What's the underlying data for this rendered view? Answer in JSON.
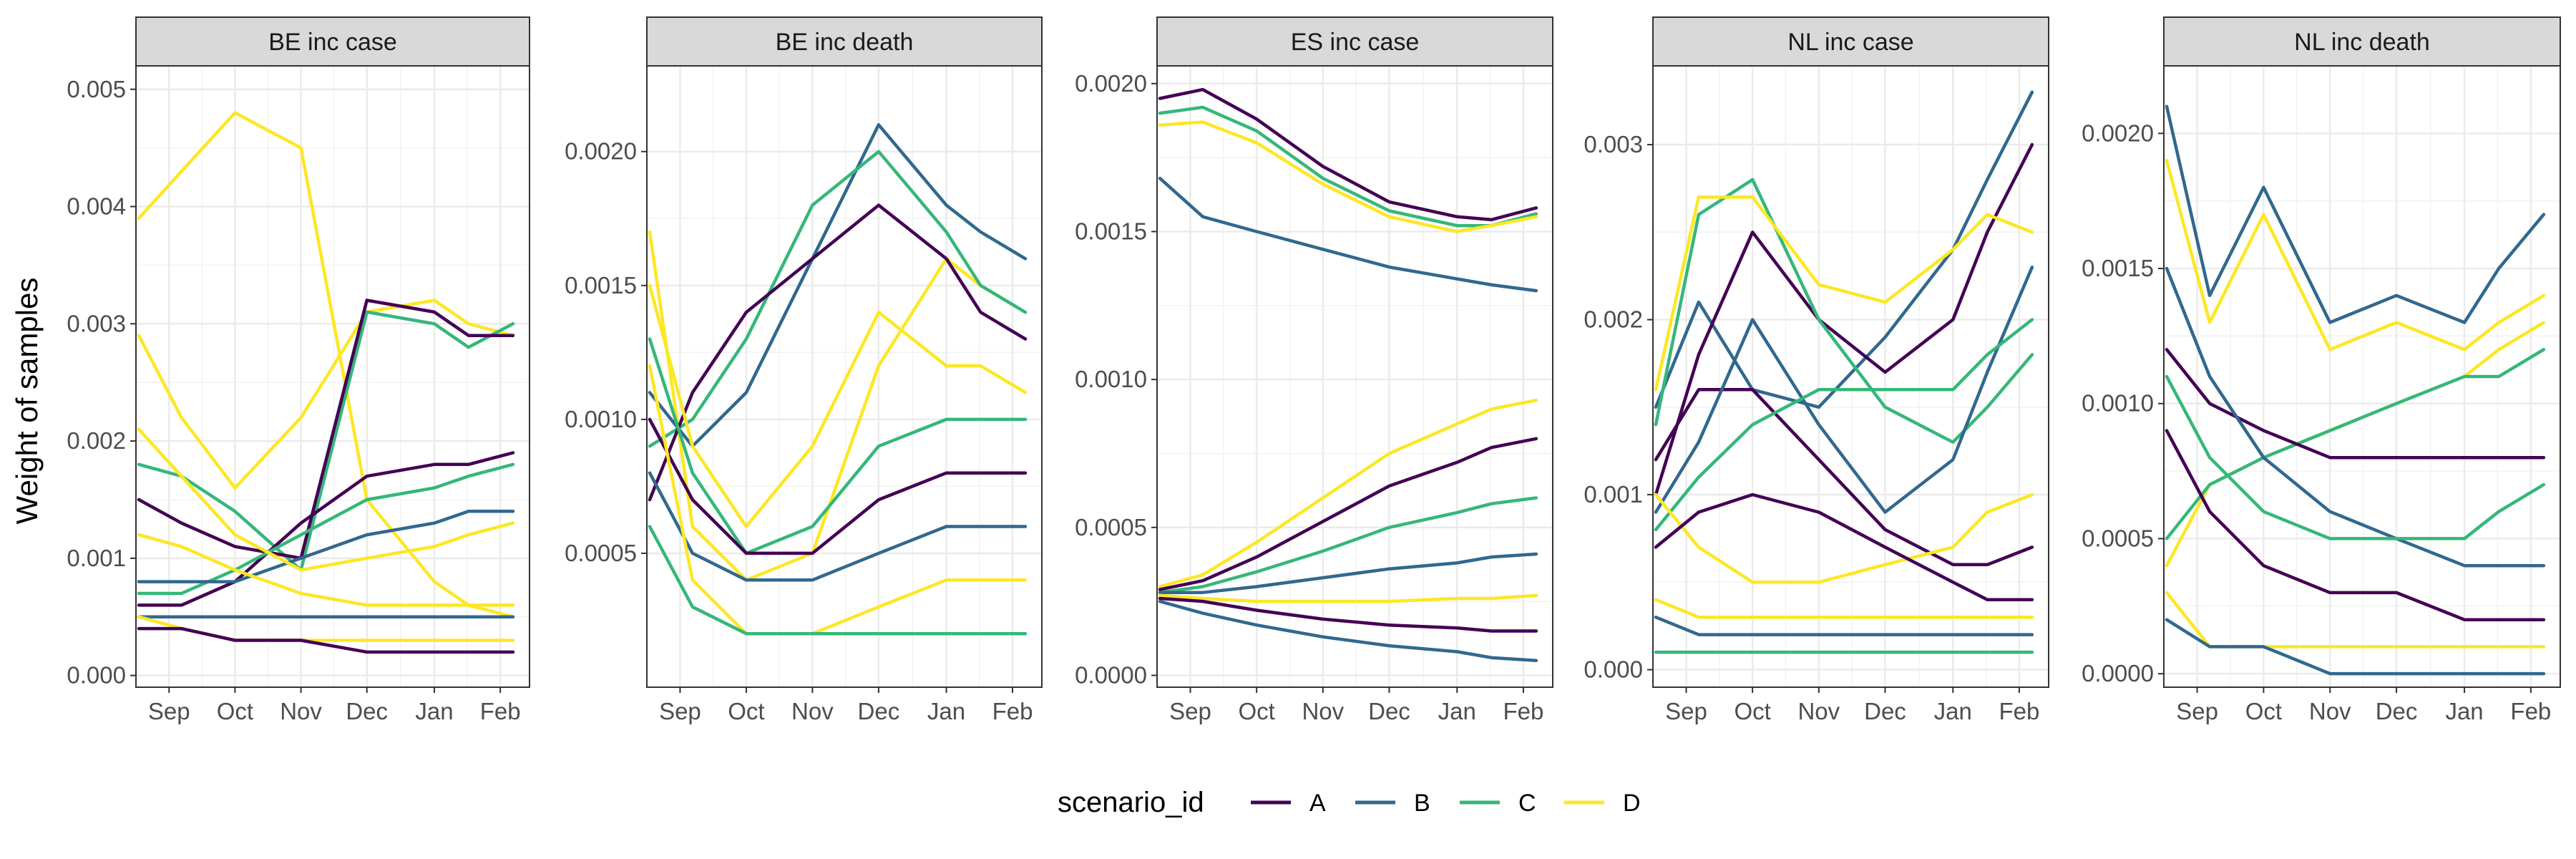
{
  "chart_data": {
    "type": "line",
    "ylabel": "Weight of samples",
    "x_ticks": [
      "Sep",
      "Oct",
      "Nov",
      "Dec",
      "Jan",
      "Feb"
    ],
    "grid": true,
    "legend": {
      "title": "scenario_id",
      "position": "bottom",
      "entries": [
        {
          "label": "A",
          "color": "#440154"
        },
        {
          "label": "B",
          "color": "#31688E"
        },
        {
          "label": "C",
          "color": "#35B779"
        },
        {
          "label": "D",
          "color": "#FDE725"
        }
      ]
    },
    "facets": [
      {
        "title": "BE inc case",
        "ylim": [
          -0.0001,
          0.0052
        ],
        "y_ticks": [
          0,
          0.001,
          0.002,
          0.003,
          0.004,
          0.005
        ],
        "y_tick_labels": [
          "0.000",
          "0.001",
          "0.002",
          "0.003",
          "0.004",
          "0.005"
        ],
        "series": [
          {
            "color": "#FDE725",
            "values": [
              0.0039,
              0.0043,
              0.0048,
              0.0045,
              0.0015,
              0.0008,
              0.0006,
              0.0005
            ]
          },
          {
            "color": "#FDE725",
            "values": [
              0.0029,
              0.0022,
              0.0016,
              0.0022,
              0.0031,
              0.0032,
              0.003,
              0.0029
            ]
          },
          {
            "color": "#35B779",
            "values": [
              0.0018,
              0.0017,
              0.0014,
              0.0009,
              0.0031,
              0.003,
              0.0028,
              0.003
            ]
          },
          {
            "color": "#440154",
            "values": [
              0.0015,
              0.0013,
              0.0011,
              0.001,
              0.0032,
              0.0031,
              0.0029,
              0.0029
            ]
          },
          {
            "color": "#440154",
            "values": [
              0.0006,
              0.0006,
              0.0008,
              0.0013,
              0.0017,
              0.0018,
              0.0018,
              0.0019
            ]
          },
          {
            "color": "#35B779",
            "values": [
              0.0007,
              0.0007,
              0.0009,
              0.0012,
              0.0015,
              0.0016,
              0.0017,
              0.0018
            ]
          },
          {
            "color": "#31688E",
            "values": [
              0.0008,
              0.0008,
              0.0008,
              0.001,
              0.0012,
              0.0013,
              0.0014,
              0.0014
            ]
          },
          {
            "color": "#FDE725",
            "values": [
              0.0021,
              0.0017,
              0.0012,
              0.0009,
              0.001,
              0.0011,
              0.0012,
              0.0013
            ]
          },
          {
            "color": "#FDE725",
            "values": [
              0.0012,
              0.0011,
              0.0009,
              0.0007,
              0.0006,
              0.0006,
              0.0006,
              0.0006
            ]
          },
          {
            "color": "#31688E",
            "values": [
              0.0005,
              0.0005,
              0.0005,
              0.0005,
              0.0005,
              0.0005,
              0.0005,
              0.0005
            ]
          },
          {
            "color": "#FDE725",
            "values": [
              0.0005,
              0.0004,
              0.0003,
              0.0003,
              0.0003,
              0.0003,
              0.0003,
              0.0003
            ]
          },
          {
            "color": "#440154",
            "values": [
              0.0004,
              0.0004,
              0.0003,
              0.0003,
              0.0002,
              0.0002,
              0.0002,
              0.0002
            ]
          }
        ]
      },
      {
        "title": "BE inc death",
        "ylim": [
          0,
          0.00232
        ],
        "y_ticks": [
          0.0005,
          0.001,
          0.0015,
          0.002
        ],
        "y_tick_labels": [
          "0.0005",
          "0.0010",
          "0.0015",
          "0.0020"
        ],
        "series": [
          {
            "color": "#FDE725",
            "values": [
              0.0017,
              0.0006,
              0.0004,
              0.0005,
              0.0012,
              0.0016,
              0.0015,
              0.0014
            ]
          },
          {
            "color": "#31688E",
            "values": [
              0.0011,
              0.0009,
              0.0011,
              0.0016,
              0.0021,
              0.0018,
              0.0017,
              0.0016
            ]
          },
          {
            "color": "#35B779",
            "values": [
              0.0009,
              0.001,
              0.0013,
              0.0018,
              0.002,
              0.0017,
              0.0015,
              0.0014
            ]
          },
          {
            "color": "#440154",
            "values": [
              0.0007,
              0.0011,
              0.0014,
              0.0016,
              0.0018,
              0.0016,
              0.0014,
              0.0013
            ]
          },
          {
            "color": "#FDE725",
            "values": [
              0.0015,
              0.0009,
              0.0006,
              0.0009,
              0.0014,
              0.0012,
              0.0012,
              0.0011
            ]
          },
          {
            "color": "#35B779",
            "values": [
              0.0013,
              0.0008,
              0.0005,
              0.0006,
              0.0009,
              0.001,
              0.001,
              0.001
            ]
          },
          {
            "color": "#440154",
            "values": [
              0.001,
              0.0007,
              0.0005,
              0.0005,
              0.0007,
              0.0008,
              0.0008,
              0.0008
            ]
          },
          {
            "color": "#31688E",
            "values": [
              0.0008,
              0.0005,
              0.0004,
              0.0004,
              0.0005,
              0.0006,
              0.0006,
              0.0006
            ]
          },
          {
            "color": "#FDE725",
            "values": [
              0.0012,
              0.0004,
              0.0002,
              0.0002,
              0.0003,
              0.0004,
              0.0004,
              0.0004
            ]
          },
          {
            "color": "#35B779",
            "values": [
              0.0006,
              0.0003,
              0.0002,
              0.0002,
              0.0002,
              0.0002,
              0.0002,
              0.0002
            ]
          }
        ]
      },
      {
        "title": "ES inc case",
        "ylim": [
          -4e-05,
          0.00206
        ],
        "y_ticks": [
          0,
          0.0005,
          0.001,
          0.0015,
          0.002
        ],
        "y_tick_labels": [
          "0.0000",
          "0.0005",
          "0.0010",
          "0.0015",
          "0.0020"
        ],
        "series": [
          {
            "color": "#440154",
            "values": [
              0.00195,
              0.00198,
              0.00188,
              0.00172,
              0.0016,
              0.00155,
              0.00154,
              0.00158
            ]
          },
          {
            "color": "#35B779",
            "values": [
              0.0019,
              0.00192,
              0.00184,
              0.00168,
              0.00157,
              0.00152,
              0.00152,
              0.00156
            ]
          },
          {
            "color": "#FDE725",
            "values": [
              0.00186,
              0.00187,
              0.0018,
              0.00166,
              0.00155,
              0.0015,
              0.00152,
              0.00155
            ]
          },
          {
            "color": "#31688E",
            "values": [
              0.00168,
              0.00155,
              0.0015,
              0.00144,
              0.00138,
              0.00134,
              0.00132,
              0.0013
            ]
          },
          {
            "color": "#FDE725",
            "values": [
              0.0003,
              0.00034,
              0.00045,
              0.0006,
              0.00075,
              0.00085,
              0.0009,
              0.00093
            ]
          },
          {
            "color": "#440154",
            "values": [
              0.00029,
              0.00032,
              0.0004,
              0.00052,
              0.00064,
              0.00072,
              0.00077,
              0.0008
            ]
          },
          {
            "color": "#35B779",
            "values": [
              0.00028,
              0.0003,
              0.00035,
              0.00042,
              0.0005,
              0.00055,
              0.00058,
              0.0006
            ]
          },
          {
            "color": "#31688E",
            "values": [
              0.00028,
              0.00028,
              0.0003,
              0.00033,
              0.00036,
              0.00038,
              0.0004,
              0.00041
            ]
          },
          {
            "color": "#FDE725",
            "values": [
              0.00027,
              0.00026,
              0.00025,
              0.00025,
              0.00025,
              0.00026,
              0.00026,
              0.00027
            ]
          },
          {
            "color": "#440154",
            "values": [
              0.00026,
              0.00025,
              0.00022,
              0.00019,
              0.00017,
              0.00016,
              0.00015,
              0.00015
            ]
          },
          {
            "color": "#31688E",
            "values": [
              0.00025,
              0.00021,
              0.00017,
              0.00013,
              0.0001,
              8e-05,
              6e-05,
              5e-05
            ]
          }
        ]
      },
      {
        "title": "NL inc case",
        "ylim": [
          -0.0001,
          0.00345
        ],
        "y_ticks": [
          0,
          0.001,
          0.002,
          0.003
        ],
        "y_tick_labels": [
          "0.000",
          "0.001",
          "0.002",
          "0.003"
        ],
        "series": [
          {
            "color": "#31688E",
            "values": [
              0.0015,
              0.0021,
              0.0016,
              0.0015,
              0.0019,
              0.0024,
              0.0028,
              0.0033
            ]
          },
          {
            "color": "#440154",
            "values": [
              0.001,
              0.0018,
              0.0025,
              0.002,
              0.0017,
              0.002,
              0.0025,
              0.003
            ]
          },
          {
            "color": "#35B779",
            "values": [
              0.0014,
              0.0026,
              0.0028,
              0.002,
              0.0015,
              0.0013,
              0.0015,
              0.0018
            ]
          },
          {
            "color": "#FDE725",
            "values": [
              0.0016,
              0.0027,
              0.0027,
              0.0022,
              0.0021,
              0.0024,
              0.0026,
              0.0025
            ]
          },
          {
            "color": "#440154",
            "values": [
              0.0012,
              0.0016,
              0.0016,
              0.0012,
              0.0008,
              0.0006,
              0.0006,
              0.0007
            ]
          },
          {
            "color": "#31688E",
            "values": [
              0.0009,
              0.0013,
              0.002,
              0.0014,
              0.0009,
              0.0012,
              0.0017,
              0.0023
            ]
          },
          {
            "color": "#35B779",
            "values": [
              0.0008,
              0.0011,
              0.0014,
              0.0016,
              0.0016,
              0.0016,
              0.0018,
              0.002
            ]
          },
          {
            "color": "#FDE725",
            "values": [
              0.001,
              0.0007,
              0.0005,
              0.0005,
              0.0006,
              0.0007,
              0.0009,
              0.001
            ]
          },
          {
            "color": "#440154",
            "values": [
              0.0007,
              0.0009,
              0.001,
              0.0009,
              0.0007,
              0.0005,
              0.0004,
              0.0004
            ]
          },
          {
            "color": "#FDE725",
            "values": [
              0.0004,
              0.0003,
              0.0003,
              0.0003,
              0.0003,
              0.0003,
              0.0003,
              0.0003
            ]
          },
          {
            "color": "#31688E",
            "values": [
              0.0003,
              0.0002,
              0.0002,
              0.0002,
              0.0002,
              0.0002,
              0.0002,
              0.0002
            ]
          },
          {
            "color": "#35B779",
            "values": [
              0.0001,
              0.0001,
              0.0001,
              0.0001,
              0.0001,
              0.0001,
              0.0001,
              0.0001
            ]
          }
        ]
      },
      {
        "title": "NL inc death",
        "ylim": [
          -5e-05,
          0.00225
        ],
        "y_ticks": [
          0,
          0.0005,
          0.001,
          0.0015,
          0.002
        ],
        "y_tick_labels": [
          "0.0000",
          "0.0005",
          "0.0010",
          "0.0015",
          "0.0020"
        ],
        "series": [
          {
            "color": "#31688E",
            "values": [
              0.0021,
              0.0014,
              0.0018,
              0.0013,
              0.0014,
              0.0013,
              0.0015,
              0.0017
            ]
          },
          {
            "color": "#FDE725",
            "values": [
              0.0019,
              0.0013,
              0.0017,
              0.0012,
              0.0013,
              0.0012,
              0.0013,
              0.0014
            ]
          },
          {
            "color": "#FDE725",
            "values": [
              0.0004,
              0.0007,
              0.0008,
              0.0009,
              0.001,
              0.0011,
              0.0012,
              0.0013
            ]
          },
          {
            "color": "#35B779",
            "values": [
              0.0005,
              0.0007,
              0.0008,
              0.0009,
              0.001,
              0.0011,
              0.0011,
              0.0012
            ]
          },
          {
            "color": "#440154",
            "values": [
              0.0012,
              0.001,
              0.0009,
              0.0008,
              0.0008,
              0.0008,
              0.0008,
              0.0008
            ]
          },
          {
            "color": "#31688E",
            "values": [
              0.0015,
              0.0011,
              0.0008,
              0.0006,
              0.0005,
              0.0004,
              0.0004,
              0.0004
            ]
          },
          {
            "color": "#35B779",
            "values": [
              0.0011,
              0.0008,
              0.0006,
              0.0005,
              0.0005,
              0.0005,
              0.0006,
              0.0007
            ]
          },
          {
            "color": "#440154",
            "values": [
              0.0009,
              0.0006,
              0.0004,
              0.0003,
              0.0003,
              0.0002,
              0.0002,
              0.0002
            ]
          },
          {
            "color": "#FDE725",
            "values": [
              0.0003,
              0.0001,
              0.0001,
              0.0001,
              0.0001,
              0.0001,
              0.0001,
              0.0001
            ]
          },
          {
            "color": "#31688E",
            "values": [
              0.0002,
              0.0001,
              0.0001,
              0.0,
              0.0,
              0.0,
              0.0,
              0.0
            ]
          }
        ]
      }
    ]
  }
}
